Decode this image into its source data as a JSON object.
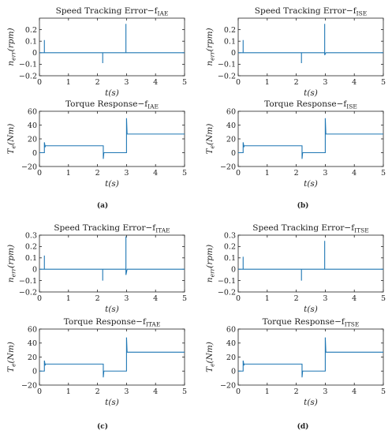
{
  "captions": [
    "(a)",
    "(b)",
    "(c)",
    "(d)"
  ],
  "chart_data": [
    {
      "type": "line",
      "title": "Speed Tracking Error−f_{IAE}",
      "xlabel": "t(s)",
      "ylabel": "n_err(rpm)",
      "xlim": [
        0,
        5
      ],
      "ylim": [
        -0.2,
        0.3
      ],
      "xticks": [
        "0",
        "1",
        "2",
        "3",
        "4",
        "5"
      ],
      "yticks": [
        "0.2",
        "0.1",
        "0",
        "−0.1",
        "−0.2"
      ],
      "grid": false,
      "series": [
        {
          "x": [
            0,
            0.17,
            0.17,
            0.17,
            0.2,
            2.18,
            2.18,
            2.18,
            2.22,
            2.98,
            2.98,
            2.98,
            3.02,
            5
          ],
          "y": [
            0,
            0,
            0.11,
            0,
            0,
            0,
            -0.09,
            0,
            0,
            0,
            0.25,
            0,
            0,
            0
          ]
        }
      ]
    },
    {
      "type": "line",
      "title": "Speed Tracking Error−f_{ISE}",
      "xlabel": "t(s)",
      "ylabel": "n_err(rpm)",
      "xlim": [
        0,
        5
      ],
      "ylim": [
        -0.2,
        0.3
      ],
      "xticks": [
        "0",
        "1",
        "2",
        "3",
        "4",
        "5"
      ],
      "yticks": [
        "0.2",
        "0.1",
        "0",
        "−0.1",
        "−0.2"
      ],
      "grid": false,
      "series": [
        {
          "x": [
            0,
            0.17,
            0.17,
            0.17,
            0.2,
            2.18,
            2.18,
            2.18,
            2.22,
            2.98,
            2.98,
            2.98,
            3.02,
            5
          ],
          "y": [
            0,
            0,
            0.11,
            0,
            0,
            0,
            -0.09,
            0,
            0,
            0,
            0.25,
            -0.02,
            0,
            0
          ]
        }
      ]
    },
    {
      "type": "line",
      "title": "Torque Response−f_{IAE}",
      "xlabel": "t(s)",
      "ylabel": "T_e(Nm)",
      "xlim": [
        0,
        5
      ],
      "ylim": [
        -20,
        60
      ],
      "xticks": [
        "0",
        "1",
        "2",
        "3",
        "4",
        "5"
      ],
      "yticks": [
        "60",
        "40",
        "20",
        "0",
        "−20"
      ],
      "grid": false,
      "series": [
        {
          "x": [
            0,
            0.17,
            0.17,
            0.2,
            0.2,
            2.2,
            2.2,
            2.22,
            2.22,
            3.0,
            3.0,
            3.02,
            3.02,
            5
          ],
          "y": [
            0,
            0,
            15,
            8,
            10,
            10,
            -9,
            0,
            0,
            0,
            50,
            27,
            27,
            27
          ]
        }
      ]
    },
    {
      "type": "line",
      "title": "Torque Response−f_{ISE}",
      "xlabel": "t(s)",
      "ylabel": "T_e(Nm)",
      "xlim": [
        0,
        5
      ],
      "ylim": [
        -20,
        60
      ],
      "xticks": [
        "0",
        "1",
        "2",
        "3",
        "4",
        "5"
      ],
      "yticks": [
        "60",
        "40",
        "20",
        "0",
        "−20"
      ],
      "grid": false,
      "series": [
        {
          "x": [
            0,
            0.17,
            0.17,
            0.2,
            0.2,
            2.2,
            2.2,
            2.22,
            2.22,
            3.0,
            3.0,
            3.02,
            3.02,
            5
          ],
          "y": [
            0,
            0,
            15,
            8,
            10,
            10,
            -9,
            0,
            0,
            0,
            50,
            27,
            27,
            27
          ]
        }
      ]
    },
    {
      "type": "line",
      "title": "Speed Tracking Error−f_{ITAE}",
      "xlabel": "t(s)",
      "ylabel": "n_err(rpm)",
      "xlim": [
        0,
        5
      ],
      "ylim": [
        -0.2,
        0.3
      ],
      "xticks": [
        "0",
        "1",
        "2",
        "3",
        "4",
        "5"
      ],
      "yticks": [
        "0.3",
        "0.2",
        "0.1",
        "0",
        "−0.1",
        "−0.2"
      ],
      "grid": false,
      "series": [
        {
          "x": [
            0,
            0.17,
            0.17,
            0.17,
            0.2,
            2.18,
            2.18,
            2.18,
            2.22,
            2.98,
            2.98,
            2.98,
            3.02,
            5
          ],
          "y": [
            0,
            0,
            0.12,
            0,
            0,
            0,
            -0.1,
            0,
            0,
            0,
            0.29,
            -0.05,
            0,
            0
          ]
        }
      ]
    },
    {
      "type": "line",
      "title": "Speed Tracking Error−f_{ITSE}",
      "xlabel": "t(s)",
      "ylabel": "n_err(rpm)",
      "xlim": [
        0,
        5
      ],
      "ylim": [
        -0.2,
        0.3
      ],
      "xticks": [
        "0",
        "1",
        "2",
        "3",
        "4",
        "5"
      ],
      "yticks": [
        "0.3",
        "0.2",
        "0.1",
        "0",
        "−0.1",
        "−0.2"
      ],
      "grid": false,
      "series": [
        {
          "x": [
            0,
            0.17,
            0.17,
            0.17,
            0.2,
            2.18,
            2.18,
            2.18,
            2.22,
            2.98,
            2.98,
            2.98,
            3.02,
            5
          ],
          "y": [
            0,
            0,
            0.11,
            0,
            0,
            0,
            -0.1,
            0,
            0,
            0,
            0.25,
            0,
            0,
            0
          ]
        }
      ]
    },
    {
      "type": "line",
      "title": "Torque Response−f_{ITAE}",
      "xlabel": "t(s)",
      "ylabel": "T_e(Nm)",
      "xlim": [
        0,
        5
      ],
      "ylim": [
        -20,
        60
      ],
      "xticks": [
        "0",
        "1",
        "2",
        "3",
        "4",
        "5"
      ],
      "yticks": [
        "60",
        "40",
        "20",
        "0",
        "−20"
      ],
      "grid": false,
      "series": [
        {
          "x": [
            0,
            0.17,
            0.17,
            0.2,
            0.2,
            2.2,
            2.2,
            2.22,
            2.22,
            3.0,
            3.0,
            3.02,
            3.02,
            5
          ],
          "y": [
            0,
            0,
            15,
            8,
            10,
            10,
            -9,
            0,
            0,
            0,
            48,
            27,
            27,
            27
          ]
        }
      ]
    },
    {
      "type": "line",
      "title": "Torque Response−f_{ITSE}",
      "xlabel": "t(s)",
      "ylabel": "T_e(Nm)",
      "xlim": [
        0,
        5
      ],
      "ylim": [
        -20,
        60
      ],
      "xticks": [
        "0",
        "1",
        "2",
        "3",
        "4",
        "5"
      ],
      "yticks": [
        "60",
        "40",
        "20",
        "0",
        "−20"
      ],
      "grid": false,
      "series": [
        {
          "x": [
            0,
            0.17,
            0.17,
            0.2,
            0.2,
            2.2,
            2.2,
            2.22,
            2.22,
            3.0,
            3.0,
            3.02,
            3.02,
            5
          ],
          "y": [
            0,
            0,
            15,
            8,
            10,
            10,
            -9,
            0,
            0,
            0,
            48,
            27,
            27,
            27
          ]
        }
      ]
    }
  ],
  "style": {
    "line_color": "#1f77b4",
    "axis_color": "#222222"
  }
}
